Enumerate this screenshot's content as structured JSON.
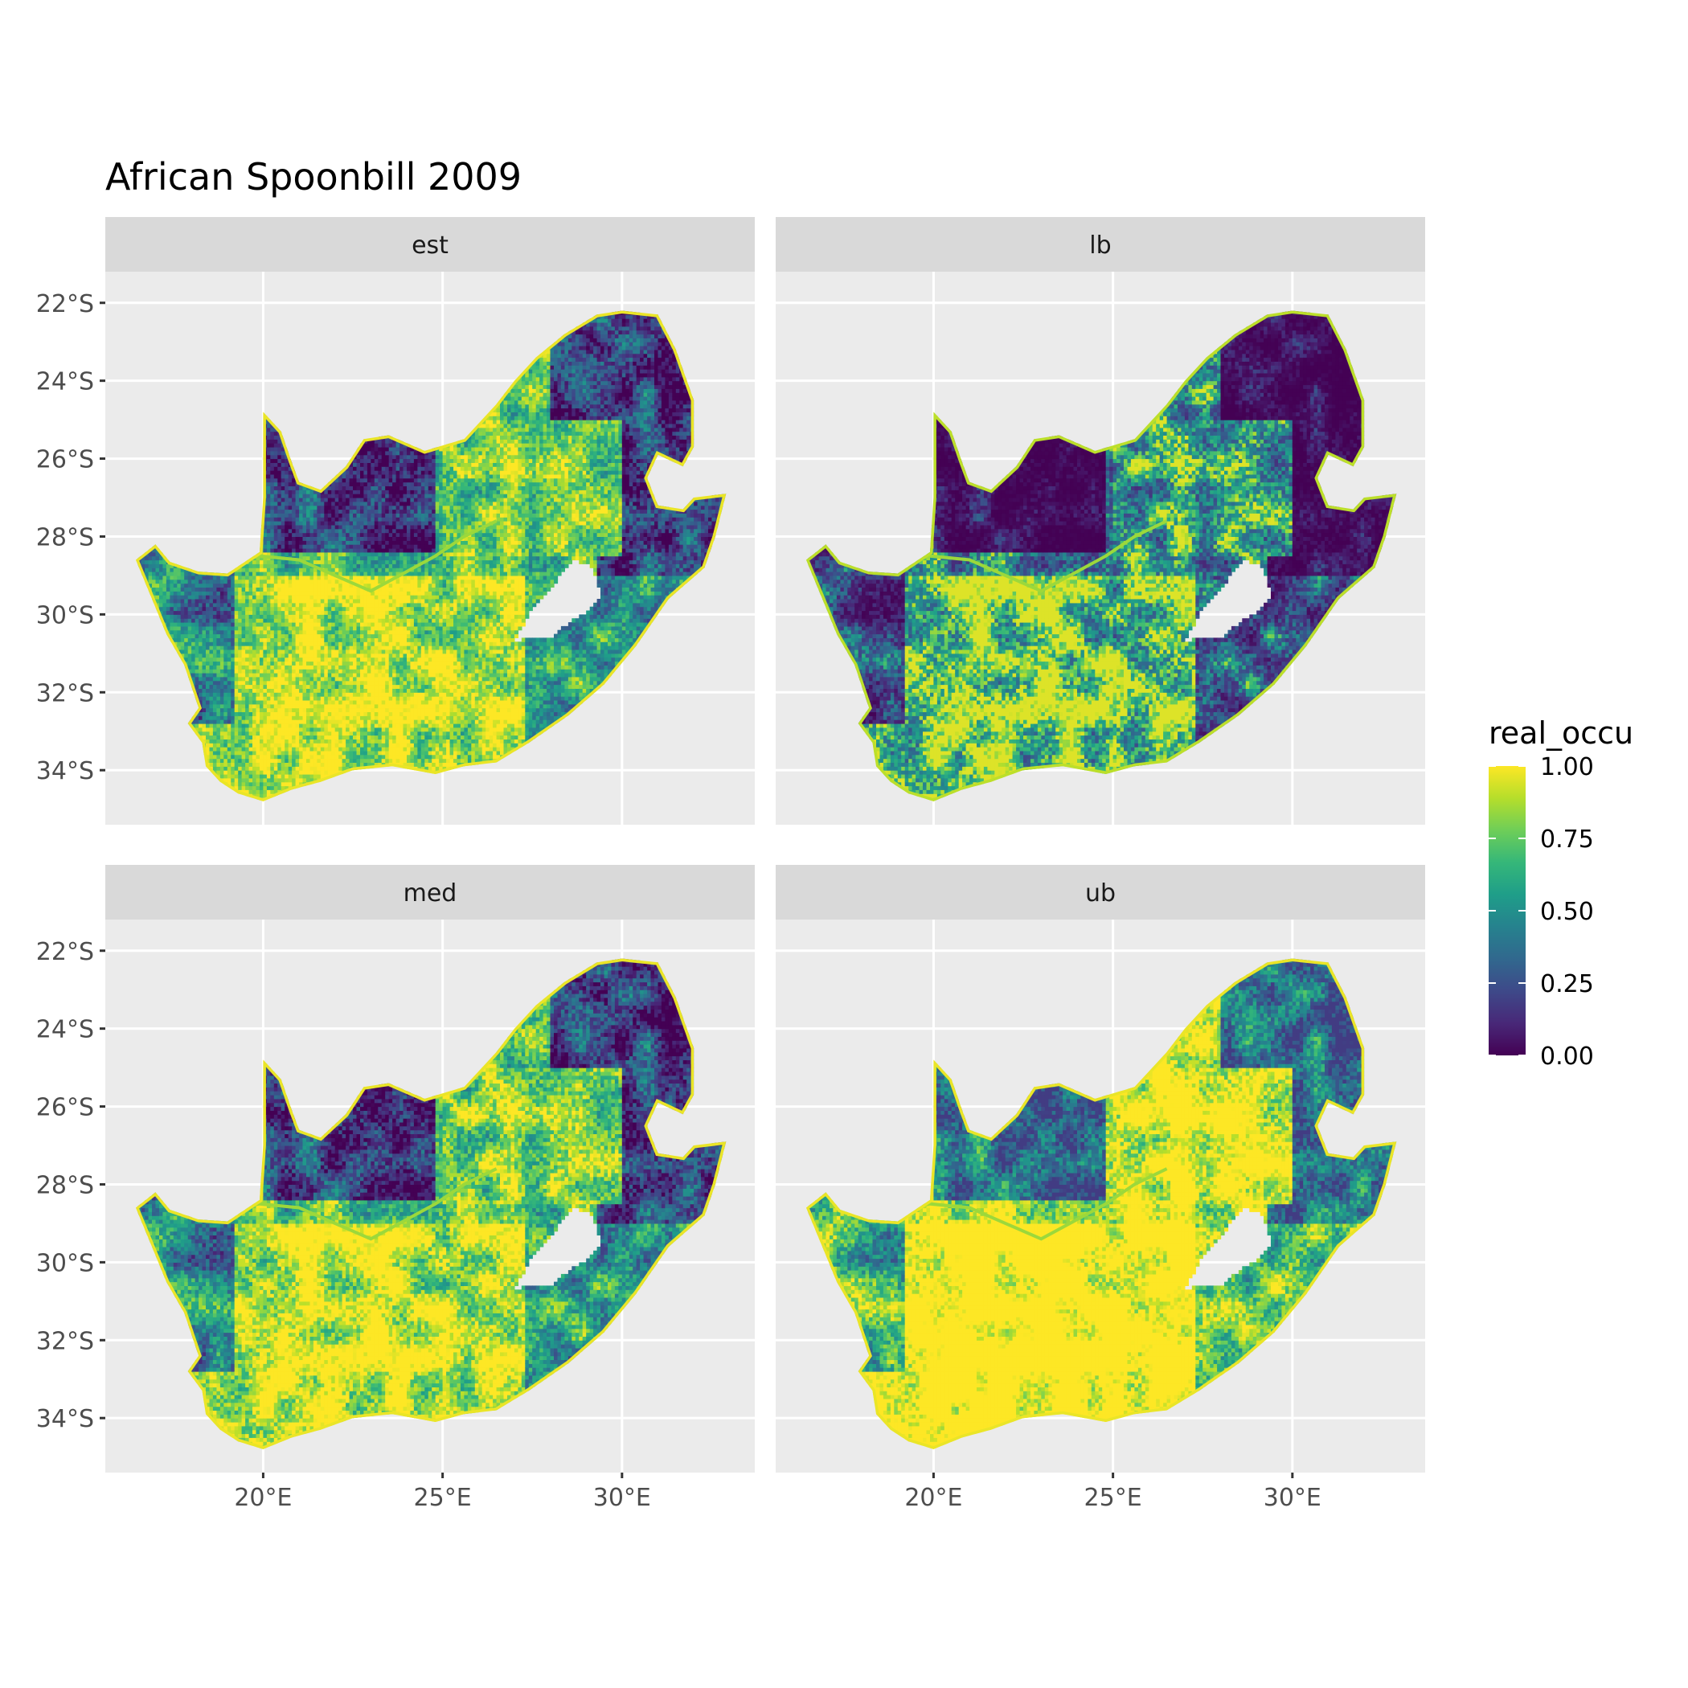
{
  "title": "African Spoonbill 2009",
  "panels": [
    {
      "label": "est",
      "profile": "est"
    },
    {
      "label": "lb",
      "profile": "lb"
    },
    {
      "label": "med",
      "profile": "med"
    },
    {
      "label": "ub",
      "profile": "ub"
    }
  ],
  "axes": {
    "x_ticks": [
      {
        "value": 20,
        "label": "20°E"
      },
      {
        "value": 25,
        "label": "25°E"
      },
      {
        "value": 30,
        "label": "30°E"
      }
    ],
    "y_ticks": [
      {
        "value": -22,
        "label": "22°S"
      },
      {
        "value": -24,
        "label": "24°S"
      },
      {
        "value": -26,
        "label": "26°S"
      },
      {
        "value": -28,
        "label": "28°S"
      },
      {
        "value": -30,
        "label": "30°S"
      },
      {
        "value": -32,
        "label": "32°S"
      },
      {
        "value": -34,
        "label": "34°S"
      }
    ],
    "xlim": [
      15.6,
      33.7
    ],
    "ylim": [
      -35.4,
      -21.2
    ]
  },
  "legend": {
    "title": "real_occu",
    "scale": "viridis",
    "range": [
      0,
      1
    ],
    "ticks": [
      {
        "value": 1.0,
        "label": "1.00"
      },
      {
        "value": 0.75,
        "label": "0.75"
      },
      {
        "value": 0.5,
        "label": "0.50"
      },
      {
        "value": 0.25,
        "label": "0.25"
      },
      {
        "value": 0.0,
        "label": "0.00"
      }
    ]
  },
  "colors": {
    "panel_background": "#ebebeb",
    "strip_background": "#d9d9d9",
    "grid": "#ffffff",
    "viridis": [
      "#440154",
      "#482878",
      "#3e4989",
      "#31688e",
      "#26828e",
      "#1f9e89",
      "#35b779",
      "#6ece58",
      "#b5de2b",
      "#fde725"
    ]
  },
  "map_outline": {
    "south_africa": [
      [
        16.45,
        -28.6
      ],
      [
        17.0,
        -28.2
      ],
      [
        17.4,
        -28.65
      ],
      [
        18.2,
        -28.9
      ],
      [
        19.0,
        -28.95
      ],
      [
        19.9,
        -28.4
      ],
      [
        20.0,
        -27.0
      ],
      [
        20.0,
        -24.8
      ],
      [
        20.5,
        -25.3
      ],
      [
        20.8,
        -26.1
      ],
      [
        21.0,
        -26.6
      ],
      [
        21.6,
        -26.8
      ],
      [
        22.3,
        -26.2
      ],
      [
        22.8,
        -25.5
      ],
      [
        23.5,
        -25.4
      ],
      [
        24.5,
        -25.8
      ],
      [
        25.6,
        -25.5
      ],
      [
        26.5,
        -24.6
      ],
      [
        27.0,
        -24.0
      ],
      [
        27.6,
        -23.4
      ],
      [
        28.4,
        -22.8
      ],
      [
        29.3,
        -22.3
      ],
      [
        30.0,
        -22.2
      ],
      [
        31.0,
        -22.3
      ],
      [
        31.5,
        -23.2
      ],
      [
        32.0,
        -24.5
      ],
      [
        32.0,
        -25.7
      ],
      [
        31.7,
        -26.2
      ],
      [
        31.0,
        -25.9
      ],
      [
        30.7,
        -26.5
      ],
      [
        31.0,
        -27.2
      ],
      [
        31.7,
        -27.3
      ],
      [
        32.0,
        -27.0
      ],
      [
        32.9,
        -26.9
      ],
      [
        32.6,
        -28.0
      ],
      [
        32.3,
        -28.8
      ],
      [
        31.3,
        -29.6
      ],
      [
        30.4,
        -30.8
      ],
      [
        29.5,
        -31.8
      ],
      [
        28.5,
        -32.6
      ],
      [
        27.4,
        -33.3
      ],
      [
        26.5,
        -33.8
      ],
      [
        25.6,
        -33.9
      ],
      [
        24.8,
        -34.1
      ],
      [
        23.6,
        -33.9
      ],
      [
        22.5,
        -34.0
      ],
      [
        21.6,
        -34.3
      ],
      [
        20.8,
        -34.5
      ],
      [
        20.0,
        -34.8
      ],
      [
        19.3,
        -34.6
      ],
      [
        18.8,
        -34.3
      ],
      [
        18.4,
        -33.9
      ],
      [
        18.3,
        -33.3
      ],
      [
        17.9,
        -32.8
      ],
      [
        18.2,
        -32.4
      ],
      [
        17.8,
        -31.3
      ],
      [
        17.3,
        -30.5
      ],
      [
        16.9,
        -29.6
      ]
    ],
    "lesotho": [
      [
        27.0,
        -30.7
      ],
      [
        27.4,
        -30.0
      ],
      [
        28.2,
        -29.1
      ],
      [
        28.7,
        -28.6
      ],
      [
        29.2,
        -28.8
      ],
      [
        29.4,
        -29.5
      ],
      [
        29.1,
        -29.9
      ],
      [
        28.7,
        -30.1
      ],
      [
        28.0,
        -30.6
      ],
      [
        27.4,
        -30.6
      ]
    ],
    "river": [
      [
        17.4,
        -28.65
      ],
      [
        18.8,
        -28.7
      ],
      [
        19.9,
        -28.5
      ],
      [
        21.0,
        -28.6
      ],
      [
        22.0,
        -29.0
      ],
      [
        23.0,
        -29.4
      ],
      [
        24.0,
        -28.9
      ],
      [
        24.8,
        -28.5
      ],
      [
        25.6,
        -28.0
      ],
      [
        26.5,
        -27.6
      ]
    ]
  }
}
